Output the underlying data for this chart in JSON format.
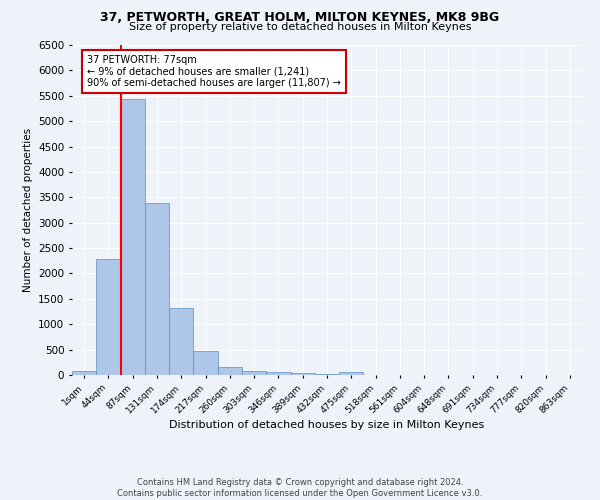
{
  "title1": "37, PETWORTH, GREAT HOLM, MILTON KEYNES, MK8 9BG",
  "title2": "Size of property relative to detached houses in Milton Keynes",
  "xlabel": "Distribution of detached houses by size in Milton Keynes",
  "ylabel": "Number of detached properties",
  "footer1": "Contains HM Land Registry data © Crown copyright and database right 2024.",
  "footer2": "Contains public sector information licensed under the Open Government Licence v3.0.",
  "categories": [
    "1sqm",
    "44sqm",
    "87sqm",
    "131sqm",
    "174sqm",
    "217sqm",
    "260sqm",
    "303sqm",
    "346sqm",
    "389sqm",
    "432sqm",
    "475sqm",
    "518sqm",
    "561sqm",
    "604sqm",
    "648sqm",
    "691sqm",
    "734sqm",
    "777sqm",
    "820sqm",
    "863sqm"
  ],
  "values": [
    70,
    2280,
    5430,
    3390,
    1310,
    480,
    160,
    80,
    60,
    40,
    20,
    60,
    0,
    0,
    0,
    0,
    0,
    0,
    0,
    0,
    0
  ],
  "bar_color": "#aec6e8",
  "bar_edge_color": "#5a8fc2",
  "highlight_color": "#ff0000",
  "annotation_text1": "37 PETWORTH: 77sqm",
  "annotation_text2": "← 9% of detached houses are smaller (1,241)",
  "annotation_text3": "90% of semi-detached houses are larger (11,807) →",
  "vline_x_index": 1.5,
  "ylim": [
    0,
    6500
  ],
  "yticks": [
    0,
    500,
    1000,
    1500,
    2000,
    2500,
    3000,
    3500,
    4000,
    4500,
    5000,
    5500,
    6000,
    6500
  ],
  "background_color": "#eef2f9",
  "grid_color": "#ffffff",
  "annotation_box_color": "#ffffff",
  "annotation_box_edge": "#cc0000",
  "title1_fontsize": 9,
  "title2_fontsize": 8,
  "xlabel_fontsize": 8,
  "ylabel_fontsize": 7.5,
  "xtick_fontsize": 6.5,
  "ytick_fontsize": 7.5,
  "footer_fontsize": 6
}
